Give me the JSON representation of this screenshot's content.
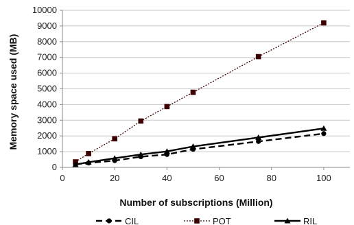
{
  "chart_data": {
    "type": "line",
    "xlabel": "Number of subscriptions (Million)",
    "ylabel": "Memory  space used (MB)",
    "xlim": [
      0,
      110
    ],
    "ylim": [
      0,
      10000
    ],
    "x_ticks": [
      0,
      20,
      40,
      60,
      80,
      100
    ],
    "y_ticks": [
      0,
      1000,
      2000,
      3000,
      4000,
      5000,
      6000,
      7000,
      8000,
      9000,
      10000
    ],
    "grid": "horizontal major",
    "legend_position": "bottom",
    "series": [
      {
        "name": "CIL",
        "style": "dashed",
        "marker": "circle",
        "color": "#000000",
        "points": [
          [
            5,
            200
          ],
          [
            10,
            280
          ],
          [
            20,
            430
          ],
          [
            30,
            680
          ],
          [
            40,
            820
          ],
          [
            50,
            1150
          ],
          [
            75,
            1650
          ],
          [
            100,
            2150
          ]
        ]
      },
      {
        "name": "POT",
        "style": "dotted",
        "marker": "square",
        "color": "#3a0000",
        "points": [
          [
            5,
            350
          ],
          [
            10,
            880
          ],
          [
            20,
            1820
          ],
          [
            30,
            2950
          ],
          [
            40,
            3870
          ],
          [
            50,
            4780
          ],
          [
            75,
            7050
          ],
          [
            100,
            9200
          ]
        ]
      },
      {
        "name": "RIL",
        "style": "solid",
        "marker": "triangle",
        "color": "#000000",
        "points": [
          [
            5,
            180
          ],
          [
            10,
            330
          ],
          [
            20,
            580
          ],
          [
            30,
            820
          ],
          [
            40,
            1020
          ],
          [
            50,
            1330
          ],
          [
            75,
            1900
          ],
          [
            100,
            2480
          ]
        ]
      }
    ]
  }
}
